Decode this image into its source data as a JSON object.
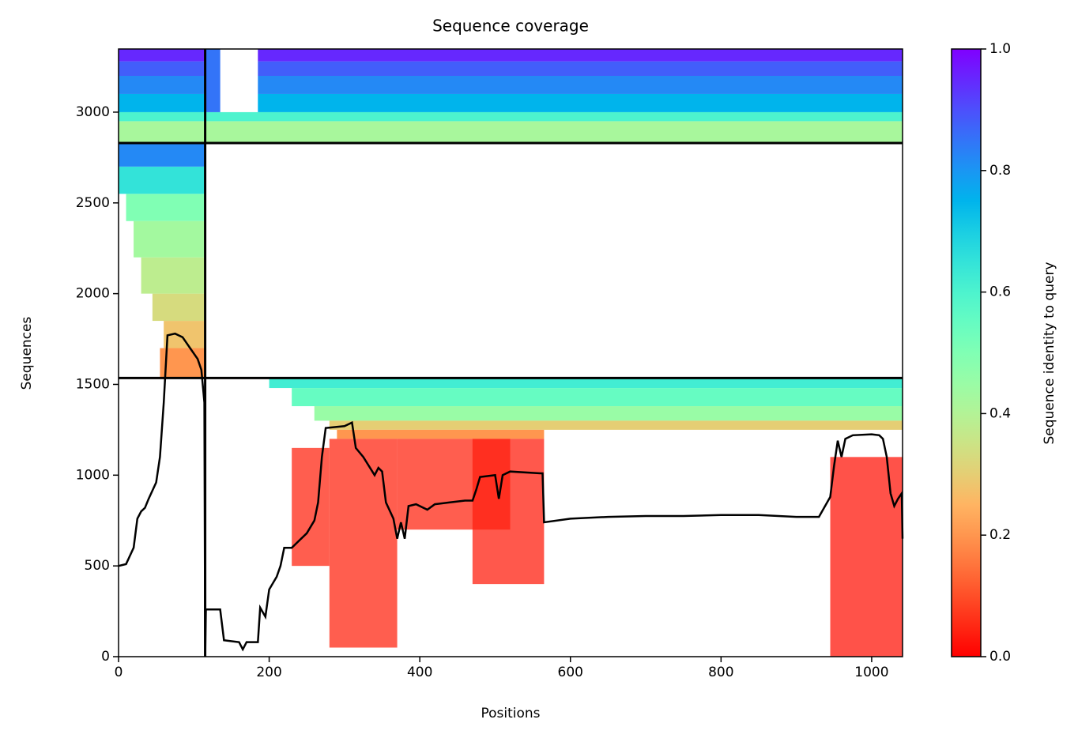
{
  "chart_data": {
    "type": "heatmap",
    "title": "Sequence coverage",
    "xlabel": "Positions",
    "ylabel": "Sequences",
    "xlim": [
      0,
      1041
    ],
    "ylim": [
      0,
      3348
    ],
    "xticks": [
      0,
      200,
      400,
      600,
      800,
      1000
    ],
    "yticks": [
      0,
      500,
      1000,
      1500,
      2000,
      2500,
      3000
    ],
    "colormap": "rainbow_r",
    "colorbar": {
      "label": "Sequence identity to query",
      "lim": [
        0,
        1
      ],
      "ticks": [
        {
          "value": 0,
          "label": "0.0"
        },
        0.2,
        0.4,
        0.6,
        0.8,
        {
          "value": 1,
          "label": "1.0"
        }
      ]
    },
    "blocks": [
      {
        "x": [
          0,
          115
        ],
        "y": [
          2830,
          2950
        ],
        "identity": 0.42
      },
      {
        "x": [
          0,
          115
        ],
        "y": [
          2950,
          3000
        ],
        "identity": 0.6
      },
      {
        "x": [
          0,
          115
        ],
        "y": [
          3000,
          3100
        ],
        "identity": 0.75
      },
      {
        "x": [
          0,
          115
        ],
        "y": [
          3100,
          3200
        ],
        "identity": 0.82
      },
      {
        "x": [
          0,
          115
        ],
        "y": [
          3200,
          3280
        ],
        "identity": 0.88
      },
      {
        "x": [
          0,
          115
        ],
        "y": [
          3280,
          3348
        ],
        "identity": 0.95
      },
      {
        "x": [
          115,
          1041
        ],
        "y": [
          2830,
          2950
        ],
        "identity": 0.42
      },
      {
        "x": [
          115,
          1041
        ],
        "y": [
          2950,
          3000
        ],
        "identity": 0.6
      },
      {
        "x": [
          185,
          1041
        ],
        "y": [
          3000,
          3100
        ],
        "identity": 0.75
      },
      {
        "x": [
          185,
          1041
        ],
        "y": [
          3100,
          3200
        ],
        "identity": 0.82
      },
      {
        "x": [
          185,
          1041
        ],
        "y": [
          3200,
          3280
        ],
        "identity": 0.88
      },
      {
        "x": [
          185,
          1041
        ],
        "y": [
          3280,
          3348
        ],
        "identity": 0.95
      },
      {
        "x": [
          115,
          135
        ],
        "y": [
          3000,
          3348
        ],
        "identity": 0.85
      },
      {
        "x": [
          55,
          115
        ],
        "y": [
          1535,
          1700
        ],
        "identity": 0.2
      },
      {
        "x": [
          60,
          115
        ],
        "y": [
          1700,
          1850
        ],
        "identity": 0.28
      },
      {
        "x": [
          45,
          115
        ],
        "y": [
          1850,
          2000
        ],
        "identity": 0.33
      },
      {
        "x": [
          30,
          115
        ],
        "y": [
          2000,
          2200
        ],
        "identity": 0.38
      },
      {
        "x": [
          20,
          115
        ],
        "y": [
          2200,
          2400
        ],
        "identity": 0.43
      },
      {
        "x": [
          10,
          115
        ],
        "y": [
          2400,
          2550
        ],
        "identity": 0.5
      },
      {
        "x": [
          0,
          115
        ],
        "y": [
          2550,
          2700
        ],
        "identity": 0.65
      },
      {
        "x": [
          0,
          115
        ],
        "y": [
          2700,
          2830
        ],
        "identity": 0.82
      },
      {
        "x": [
          200,
          1041
        ],
        "y": [
          1480,
          1535
        ],
        "identity": 0.62
      },
      {
        "x": [
          230,
          1041
        ],
        "y": [
          1380,
          1480
        ],
        "identity": 0.55
      },
      {
        "x": [
          260,
          1041
        ],
        "y": [
          1300,
          1380
        ],
        "identity": 0.45
      },
      {
        "x": [
          280,
          1041
        ],
        "y": [
          1250,
          1300
        ],
        "identity": 0.3
      },
      {
        "x": [
          290,
          565
        ],
        "y": [
          1200,
          1250
        ],
        "identity": 0.2
      },
      {
        "x": [
          230,
          280
        ],
        "y": [
          500,
          1150
        ],
        "identity": 0.05
      },
      {
        "x": [
          280,
          370
        ],
        "y": [
          50,
          1200
        ],
        "identity": 0.05
      },
      {
        "x": [
          370,
          520
        ],
        "y": [
          700,
          1200
        ],
        "identity": 0.05
      },
      {
        "x": [
          470,
          565
        ],
        "y": [
          400,
          1200
        ],
        "identity": 0.04
      },
      {
        "x": [
          945,
          1041
        ],
        "y": [
          0,
          1100
        ],
        "identity": 0.03
      }
    ],
    "separators": {
      "x": [
        115
      ],
      "y": [
        1535,
        2830
      ]
    },
    "coverage": {
      "x": [
        0,
        10,
        20,
        25,
        30,
        35,
        40,
        50,
        55,
        60,
        65,
        75,
        85,
        95,
        105,
        110,
        114,
        115,
        116,
        135,
        140,
        160,
        165,
        170,
        185,
        188,
        195,
        200,
        210,
        215,
        220,
        230,
        235,
        250,
        260,
        265,
        270,
        275,
        300,
        310,
        315,
        325,
        340,
        345,
        350,
        355,
        365,
        370,
        375,
        380,
        385,
        395,
        410,
        420,
        440,
        460,
        470,
        475,
        480,
        500,
        505,
        510,
        520,
        560,
        563,
        565,
        600,
        650,
        700,
        750,
        800,
        850,
        900,
        930,
        945,
        950,
        955,
        960,
        965,
        975,
        1000,
        1010,
        1015,
        1020,
        1025,
        1030,
        1035,
        1040,
        1041
      ],
      "y": [
        500,
        510,
        600,
        760,
        800,
        820,
        870,
        960,
        1100,
        1400,
        1770,
        1780,
        1760,
        1700,
        1640,
        1580,
        1400,
        0,
        260,
        260,
        90,
        80,
        40,
        80,
        80,
        270,
        220,
        370,
        440,
        500,
        600,
        600,
        620,
        680,
        750,
        850,
        1100,
        1260,
        1270,
        1290,
        1150,
        1100,
        1000,
        1040,
        1020,
        850,
        760,
        650,
        740,
        650,
        830,
        840,
        810,
        840,
        850,
        860,
        860,
        920,
        990,
        1000,
        870,
        1000,
        1020,
        1010,
        1010,
        740,
        760,
        770,
        775,
        775,
        780,
        780,
        770,
        770,
        880,
        1050,
        1190,
        1100,
        1200,
        1220,
        1225,
        1220,
        1200,
        1100,
        900,
        830,
        870,
        900,
        650
      ]
    }
  }
}
